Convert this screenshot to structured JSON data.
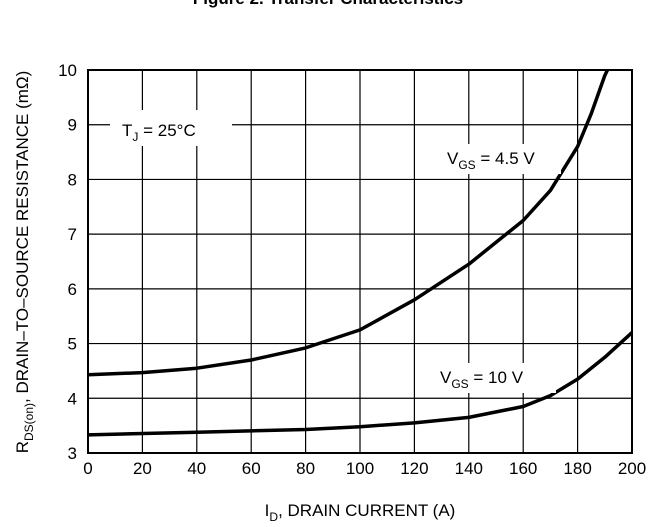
{
  "chart_data": {
    "type": "line",
    "title": "Figure 2. Transfer Characteristics",
    "x_label": [
      "I",
      "D",
      ", DRAIN CURRENT (A)"
    ],
    "y_label": [
      "R",
      "DS(on)",
      ", DRAIN–TO–SOURCE RESISTANCE (mΩ)"
    ],
    "annotation": [
      "T",
      "J",
      " = 25°C"
    ],
    "xlim": [
      0,
      200
    ],
    "xticks": [
      0,
      20,
      40,
      60,
      80,
      100,
      120,
      140,
      160,
      180,
      200
    ],
    "ylim": [
      3,
      10
    ],
    "yticks": [
      3,
      4,
      5,
      6,
      7,
      8,
      9,
      10
    ],
    "grid": true,
    "series": [
      {
        "name": [
          "V",
          "GS",
          " = 4.5 V"
        ],
        "color": "#000000",
        "x": [
          0,
          20,
          40,
          60,
          80,
          100,
          120,
          140,
          160,
          170,
          180,
          185,
          190,
          191
        ],
        "values": [
          4.43,
          4.47,
          4.55,
          4.7,
          4.92,
          5.25,
          5.8,
          6.45,
          7.25,
          7.8,
          8.6,
          9.2,
          9.9,
          10
        ]
      },
      {
        "name": [
          "V",
          "GS",
          " = 10 V"
        ],
        "color": "#000000",
        "x": [
          0,
          40,
          80,
          100,
          120,
          140,
          160,
          170,
          180,
          190,
          200
        ],
        "values": [
          3.33,
          3.38,
          3.43,
          3.48,
          3.55,
          3.65,
          3.85,
          4.05,
          4.35,
          4.75,
          5.2
        ]
      }
    ]
  }
}
